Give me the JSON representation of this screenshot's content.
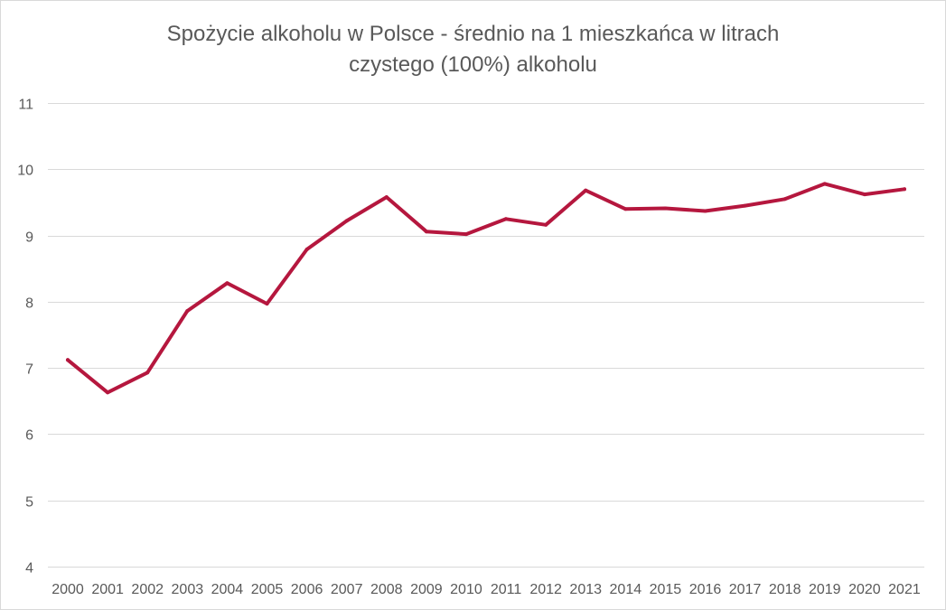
{
  "chart_data": {
    "type": "line",
    "title_lines": [
      "Spożycie alkoholu w Polsce - średnio na 1 mieszkańca w litrach",
      "czystego (100%) alkoholu"
    ],
    "xlabel": "",
    "ylabel": "",
    "categories": [
      "2000",
      "2001",
      "2002",
      "2003",
      "2004",
      "2005",
      "2006",
      "2007",
      "2008",
      "2009",
      "2010",
      "2011",
      "2012",
      "2013",
      "2014",
      "2015",
      "2016",
      "2017",
      "2018",
      "2019",
      "2020",
      "2021"
    ],
    "series": [
      {
        "color": "#B5173E",
        "values": [
          7.12,
          6.63,
          6.93,
          7.86,
          8.28,
          7.97,
          8.79,
          9.22,
          9.58,
          9.06,
          9.02,
          9.25,
          9.16,
          9.68,
          9.4,
          9.41,
          9.37,
          9.45,
          9.55,
          9.78,
          9.62,
          9.7
        ]
      }
    ],
    "ylim": [
      4,
      11
    ],
    "yticks": [
      "4",
      "5",
      "6",
      "7",
      "8",
      "9",
      "10",
      "11"
    ],
    "grid": true,
    "legend": "none"
  }
}
